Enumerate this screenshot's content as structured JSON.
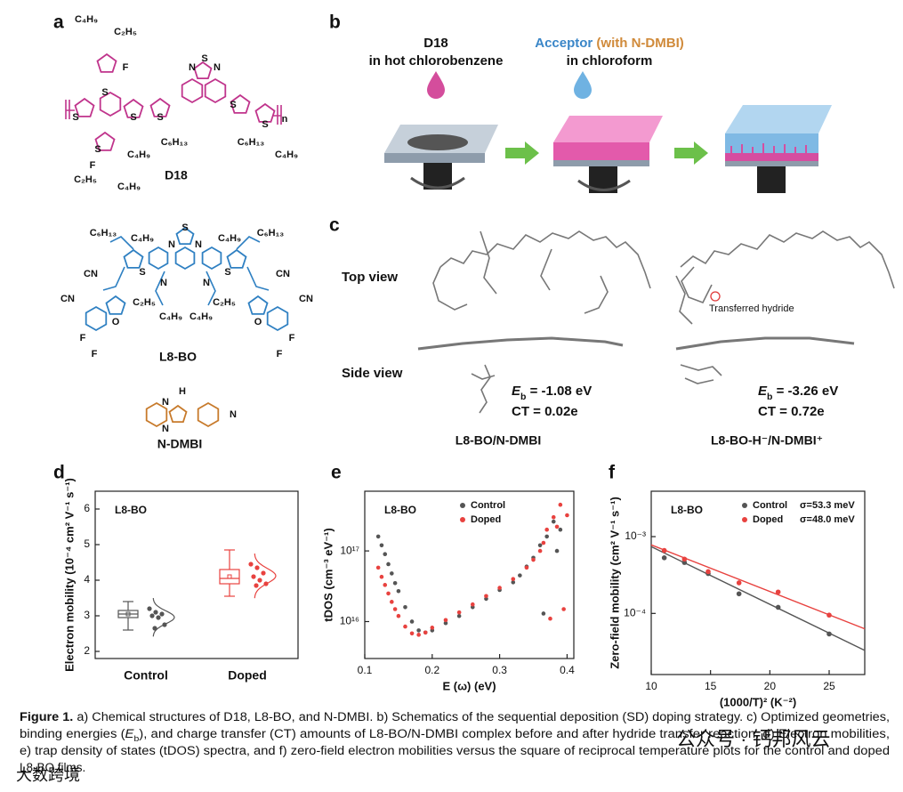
{
  "panel_labels": [
    "a",
    "b",
    "c",
    "d",
    "e",
    "f"
  ],
  "panel_a": {
    "d18_name": "D18",
    "l8bo_name": "L8-BO",
    "ndmbi_name": "N-DMBI",
    "d18_atoms": [
      "C₄H₉",
      "C₂H₅",
      "F",
      "S",
      "N",
      "N",
      "S",
      "S",
      "S",
      "S",
      "S",
      "S",
      "n",
      "S",
      "C₆H₁₃",
      "C₄H₉",
      "C₆H₁₃",
      "C₄H₉",
      "F",
      "C₂H₅",
      "C₄H₉"
    ],
    "l8bo_atoms": [
      "C₆H₁₃",
      "C₄H₉",
      "S",
      "N",
      "N",
      "C₄H₉",
      "C₆H₁₃",
      "S",
      "S",
      "N",
      "N",
      "CN",
      "CN",
      "C₂H₅",
      "C₄H₉",
      "C₂H₅",
      "C₄H₉",
      "O",
      "O",
      "CN",
      "CN",
      "F",
      "F",
      "F",
      "F"
    ],
    "ndmbi_atoms": [
      "N",
      "H",
      "N",
      "N"
    ]
  },
  "panel_b": {
    "donor": "D18",
    "donor_solvent": "in hot chlorobenzene",
    "acceptor": [
      {
        "t": "Acceptor",
        "color": "#3a86c8"
      },
      {
        "t": " (with N-DMBI)",
        "color": "#d08a3a"
      }
    ],
    "acceptor_solvent": "in chloroform"
  },
  "panel_c": {
    "top_view": "Top view",
    "side_view": "Side view",
    "hydride_note": "Transferred hydride",
    "left": {
      "energy": [
        {
          "t": "E",
          "style": "italic"
        },
        {
          "t": "b",
          "style": "sub"
        },
        {
          "t": " = -1.08 eV"
        }
      ],
      "charge": "CT = 0.02e",
      "name": "L8-BO/N-DMBI"
    },
    "right": {
      "energy": [
        {
          "t": "E",
          "style": "italic"
        },
        {
          "t": "b",
          "style": "sub"
        },
        {
          "t": " = -3.26 eV"
        }
      ],
      "charge": "CT = 0.72e",
      "name": "L8-BO-H⁻/N-DMBI⁺"
    }
  },
  "chart_data": [
    {
      "type": "box",
      "annotation": "L8-BO",
      "y_label": "Electron mobility (10⁻⁴ cm² V⁻¹ s⁻¹)",
      "categories": [
        "Control",
        "Doped"
      ],
      "ylim": [
        1.8,
        6.5
      ],
      "yticks": [
        2,
        3,
        4,
        5,
        6
      ],
      "series": [
        {
          "color": "#555555",
          "values": [
            3.2,
            3.1,
            3.05,
            3.0,
            2.95,
            2.75,
            2.65
          ],
          "box": {
            "whisker_low": 2.6,
            "q1": 2.95,
            "median": 3.05,
            "q3": 3.15,
            "whisker_high": 3.4,
            "mean": 3.05
          }
        },
        {
          "color": "#e8423f",
          "values": [
            4.45,
            4.35,
            4.2,
            4.1,
            4.0,
            3.9,
            3.85
          ],
          "box": {
            "whisker_low": 3.55,
            "q1": 3.9,
            "median": 4.05,
            "q3": 4.3,
            "whisker_high": 4.85,
            "mean": 4.1
          }
        }
      ]
    },
    {
      "type": "scatter",
      "annotation": "L8-BO",
      "x_label": "E (ω) (eV)",
      "y_label": "tDOS (cm⁻³ eV⁻¹)",
      "xlim": [
        0.1,
        0.41
      ],
      "xticks": [
        0.1,
        0.2,
        0.3,
        0.4
      ],
      "yscale": "log",
      "ylim": [
        3000000000000000.0,
        7e+17
      ],
      "yticks": [
        {
          "value": 1e+16,
          "label": "10¹⁶"
        },
        {
          "value": 1e+17,
          "label": "10¹⁷"
        }
      ],
      "legend": "upper right",
      "series": [
        {
          "name": "Control",
          "color": "#555555",
          "x": [
            0.12,
            0.125,
            0.13,
            0.135,
            0.14,
            0.145,
            0.15,
            0.16,
            0.17,
            0.18,
            0.19,
            0.2,
            0.22,
            0.24,
            0.26,
            0.28,
            0.3,
            0.32,
            0.33,
            0.34,
            0.35,
            0.36,
            0.365,
            0.37,
            0.38,
            0.385,
            0.39
          ],
          "values": [
            1.6e+17,
            1.2e+17,
            9e+16,
            6.5e+16,
            4.8e+16,
            3.5e+16,
            2.7e+16,
            1.6e+16,
            1e+16,
            7500000000000000.0,
            7000000000000000.0,
            7500000000000000.0,
            9500000000000000.0,
            1.2e+16,
            1.6e+16,
            2.1e+16,
            2.8e+16,
            3.6e+16,
            4.5e+16,
            6e+16,
            8e+16,
            1.2e+17,
            1.3e+16,
            1.6e+17,
            2.6e+17,
            1e+17,
            2e+17
          ]
        },
        {
          "name": "Doped",
          "color": "#e8423f",
          "x": [
            0.12,
            0.125,
            0.13,
            0.135,
            0.14,
            0.145,
            0.15,
            0.16,
            0.17,
            0.18,
            0.19,
            0.2,
            0.22,
            0.24,
            0.26,
            0.28,
            0.3,
            0.32,
            0.34,
            0.35,
            0.36,
            0.365,
            0.37,
            0.375,
            0.38,
            0.385,
            0.39,
            0.395,
            0.4
          ],
          "values": [
            5.8e+16,
            4.3e+16,
            3.3e+16,
            2.5e+16,
            1.9e+16,
            1.5e+16,
            1.2e+16,
            8500000000000000.0,
            6800000000000000.0,
            6500000000000000.0,
            7000000000000000.0,
            8200000000000000.0,
            1.05e+16,
            1.35e+16,
            1.75e+16,
            2.3e+16,
            3e+16,
            4e+16,
            5.8e+16,
            7.5e+16,
            1e+17,
            1.3e+17,
            2e+17,
            1.1e+16,
            3e+17,
            2.2e+17,
            4.5e+17,
            1.5e+16,
            3.2e+17
          ]
        }
      ]
    },
    {
      "type": "scatter",
      "annotation": "L8-BO",
      "x_label": "(1000/T)² (K⁻²)",
      "y_label": "Zero-field mobility (cm² V⁻¹ s⁻¹)",
      "xlim": [
        10,
        28
      ],
      "xticks": [
        10,
        15,
        20,
        25
      ],
      "yscale": "log",
      "ylim": [
        1.6e-05,
        0.0039
      ],
      "yticks": [
        {
          "value": 0.0001,
          "label": "10⁻⁴"
        },
        {
          "value": 0.001,
          "label": "10⁻³"
        }
      ],
      "legend": "upper right",
      "series": [
        {
          "name": "Control",
          "sigma": "σ=53.3 meV",
          "color": "#555555",
          "x": [
            11.1,
            12.8,
            14.8,
            17.4,
            20.7,
            25
          ],
          "values": [
            0.00053,
            0.00046,
            0.00033,
            0.00018,
            0.00012,
            5.4e-05
          ],
          "fit": {
            "x": [
              10,
              28
            ],
            "values": [
              0.00074,
              3.3e-05
            ]
          }
        },
        {
          "name": "Doped",
          "sigma": "σ=48.0 meV",
          "color": "#e8423f",
          "x": [
            11.1,
            12.8,
            14.8,
            17.4,
            20.7,
            25
          ],
          "values": [
            0.00066,
            0.00051,
            0.00035,
            0.00025,
            0.00019,
            9.5e-05
          ],
          "fit": {
            "x": [
              10,
              28
            ],
            "values": [
              0.00078,
              6.3e-05
            ]
          }
        }
      ]
    }
  ],
  "caption": {
    "lines": [
      [
        {
          "t": "Figure 1.",
          "style": "bold"
        },
        {
          "t": "  a) Chemical structures of D18, L8-BO, and N-DMBI. b) Schematics of the sequential deposition (SD) doping strategy. c) Optimized geometries,"
        }
      ],
      [
        {
          "t": "binding energies ("
        },
        {
          "t": "E",
          "style": "italic"
        },
        {
          "t": "b",
          "style": "sub"
        },
        {
          "t": "), and charge transfer (CT) amounts of L8-BO/N-DMBI complex before and after hydride transfer reaction. d) Electron mobilities,"
        }
      ],
      [
        {
          "t": "e) trap density of states (tDOS) spectra, and f) zero-field electron mobilities versus the square of reciprocal temperature plots for the control and doped"
        }
      ],
      [
        {
          "t": "L8-BO films."
        }
      ]
    ]
  },
  "watermarks": [
    "公众号 · 钙邦风云",
    "大数跨境"
  ]
}
